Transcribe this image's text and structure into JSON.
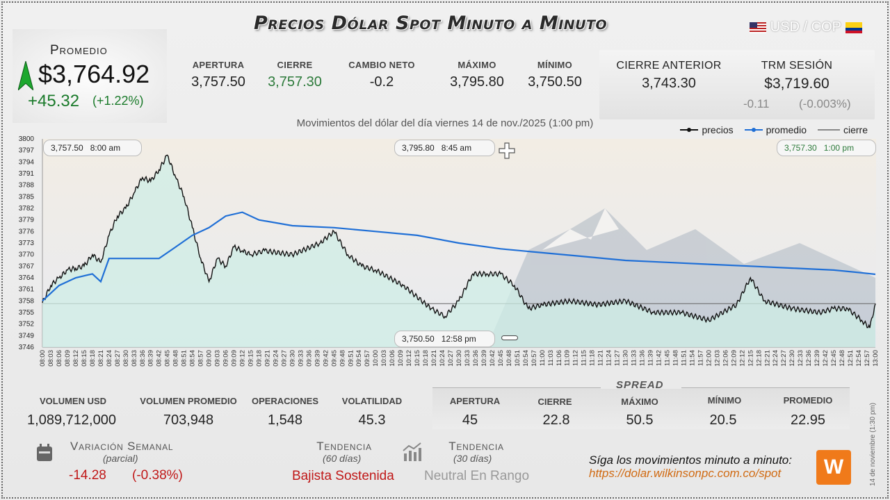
{
  "title": "Precios Dólar Spot Minuto a Minuto",
  "pair": "USD / COP",
  "promedio": {
    "label": "Promedio",
    "value": "$3,764.92",
    "change": "+45.32",
    "pct": "(+1.22%)"
  },
  "stats": [
    {
      "label": "APERTURA",
      "value": "3,757.50",
      "color": "#222"
    },
    {
      "label": "CIERRE",
      "value": "3,757.30",
      "color": "#2c7a3a"
    },
    {
      "label": "CAMBIO NETO",
      "value": "-0.2",
      "color": "#222"
    },
    {
      "label": "MÁXIMO",
      "value": "3,795.80",
      "color": "#222"
    },
    {
      "label": "MÍNIMO",
      "value": "3,750.50",
      "color": "#222"
    }
  ],
  "prev": {
    "label": "CIERRE ANTERIOR",
    "value": "3,743.30"
  },
  "trm": {
    "label": "TRM SESIÓN",
    "value": "$3,719.60",
    "diff": "-0.11",
    "pct": "(-0.003%)"
  },
  "subtitle": "Movimientos del dólar del día viernes 14 de nov./2025 (1:00 pm)",
  "legend": {
    "precios": "precios",
    "promedio": "promedio",
    "cierre": "cierre"
  },
  "callouts": {
    "open": {
      "value": "3,757.50",
      "time": "8:00 am"
    },
    "max": {
      "value": "3,795.80",
      "time": "8:45 am"
    },
    "close": {
      "value": "3,757.30",
      "time": "1:00 pm"
    },
    "min": {
      "value": "3,750.50",
      "time": "12:58 pm"
    }
  },
  "chart_data": {
    "type": "line",
    "ylim": [
      3746,
      3800
    ],
    "yticks": [
      3800,
      3797,
      3794,
      3791,
      3788,
      3785,
      3782,
      3779,
      3776,
      3773,
      3770,
      3767,
      3764,
      3761,
      3758,
      3755,
      3752,
      3749,
      3746
    ],
    "xlim_minutes": [
      480,
      780
    ],
    "close_line": 3757.3,
    "series": [
      {
        "name": "precios",
        "color": "#111111",
        "x": [
          "08:00",
          "08:03",
          "08:06",
          "08:09",
          "08:12",
          "08:15",
          "08:18",
          "08:21",
          "08:24",
          "08:27",
          "08:30",
          "08:33",
          "08:36",
          "08:39",
          "08:42",
          "08:45",
          "08:48",
          "08:51",
          "08:54",
          "08:57",
          "09:00",
          "09:03",
          "09:06",
          "09:09",
          "09:12",
          "09:15",
          "09:20",
          "09:30",
          "09:40",
          "09:45",
          "09:50",
          "09:55",
          "10:00",
          "10:10",
          "10:20",
          "10:25",
          "10:30",
          "10:35",
          "10:40",
          "10:45",
          "10:50",
          "10:55",
          "11:00",
          "11:10",
          "11:20",
          "11:30",
          "11:40",
          "11:50",
          "12:00",
          "12:10",
          "12:15",
          "12:20",
          "12:30",
          "12:40",
          "12:45",
          "12:50",
          "12:55",
          "12:58",
          "13:00"
        ],
        "y": [
          3757.5,
          3762,
          3764,
          3766,
          3766.5,
          3767,
          3770,
          3768,
          3775,
          3780,
          3782,
          3786,
          3790,
          3789,
          3792,
          3795.8,
          3790,
          3785,
          3777,
          3769,
          3763,
          3769,
          3767,
          3772,
          3771,
          3770,
          3771,
          3770,
          3773,
          3776,
          3770,
          3767,
          3766,
          3762,
          3756,
          3754,
          3758,
          3765,
          3765,
          3765,
          3762,
          3756,
          3757,
          3758,
          3757,
          3758,
          3755,
          3755,
          3753,
          3757,
          3764,
          3758,
          3756,
          3755,
          3756,
          3756,
          3753,
          3751,
          3757.3
        ]
      },
      {
        "name": "promedio",
        "color": "#1f6fd6",
        "x": [
          "08:00",
          "08:06",
          "08:12",
          "08:18",
          "08:21",
          "08:24",
          "08:30",
          "08:42",
          "08:48",
          "08:54",
          "09:00",
          "09:06",
          "09:12",
          "09:18",
          "09:30",
          "09:45",
          "10:00",
          "10:15",
          "10:30",
          "10:45",
          "11:00",
          "11:15",
          "11:30",
          "11:45",
          "12:00",
          "12:15",
          "12:30",
          "12:45",
          "12:55",
          "13:00"
        ],
        "y": [
          3758,
          3762,
          3764,
          3765,
          3763,
          3769,
          3769,
          3769,
          3772,
          3775,
          3777,
          3780,
          3781,
          3779,
          3777.5,
          3777,
          3776,
          3775,
          3773,
          3771.5,
          3770.5,
          3769.5,
          3768.5,
          3768,
          3767.5,
          3767,
          3766.5,
          3766,
          3765.3,
          3764.9
        ]
      }
    ]
  }
}
